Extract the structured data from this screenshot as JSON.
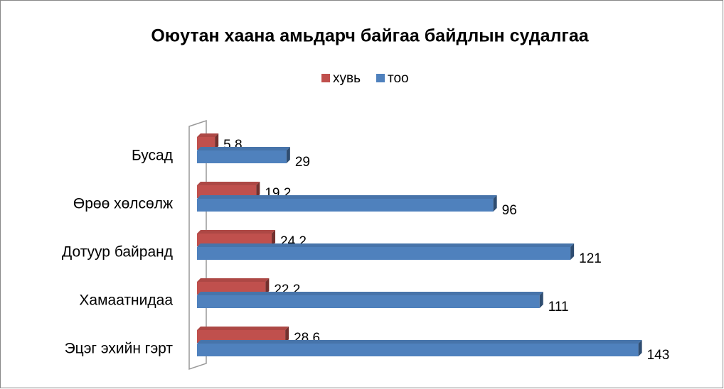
{
  "chart_data": {
    "type": "bar",
    "orientation": "horizontal",
    "title": "Оюутан хаана амьдарч байгаа байдлын судалгаа",
    "categories": [
      "Эцэг эхийн гэрт",
      "Хамаатнидаа",
      "Дотуур байранд",
      "Өрөө хөлсөлж",
      "Бусад"
    ],
    "series": [
      {
        "name": "хувь",
        "color": "#c0504d",
        "values": [
          28.6,
          22.2,
          24.2,
          19.2,
          5.8
        ]
      },
      {
        "name": "тоо",
        "color": "#4f81bd",
        "values": [
          143,
          111,
          121,
          96,
          29
        ]
      }
    ],
    "legend": "top"
  }
}
